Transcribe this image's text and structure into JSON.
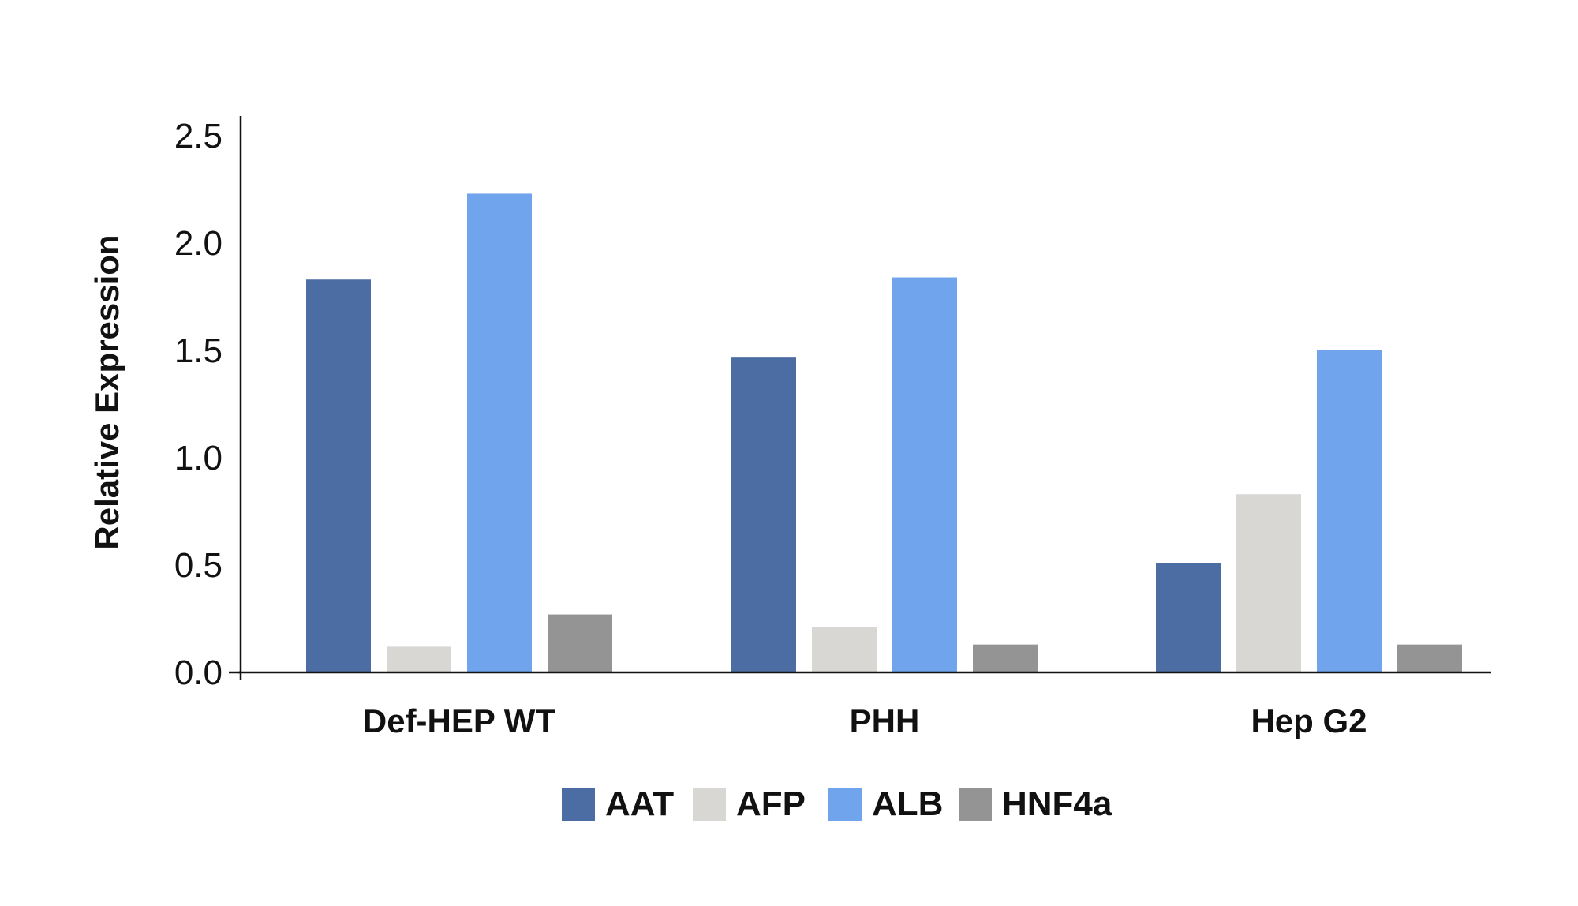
{
  "chart_data": {
    "type": "bar",
    "title": "",
    "xlabel": "",
    "ylabel": "Relative Expression",
    "categories": [
      "Def-HEP WT",
      "PHH",
      "Hep G2"
    ],
    "series": [
      {
        "name": "AAT",
        "color": "#4c6da3",
        "values": [
          1.83,
          1.47,
          0.51
        ]
      },
      {
        "name": "AFP",
        "color": "#d9d7d4",
        "values": [
          0.12,
          0.21,
          0.83
        ]
      },
      {
        "name": "ALB",
        "color": "#70a5ee",
        "values": [
          2.23,
          1.84,
          1.5
        ]
      },
      {
        "name": "HNF4a",
        "color": "#949494",
        "values": [
          0.27,
          0.13,
          0.13
        ]
      }
    ],
    "yticks": [
      "0.0",
      "0.5",
      "1.0",
      "1.5",
      "2.0",
      "2.5"
    ],
    "ylim": [
      0,
      2.6
    ],
    "grid": false,
    "legend_position": "bottom"
  }
}
